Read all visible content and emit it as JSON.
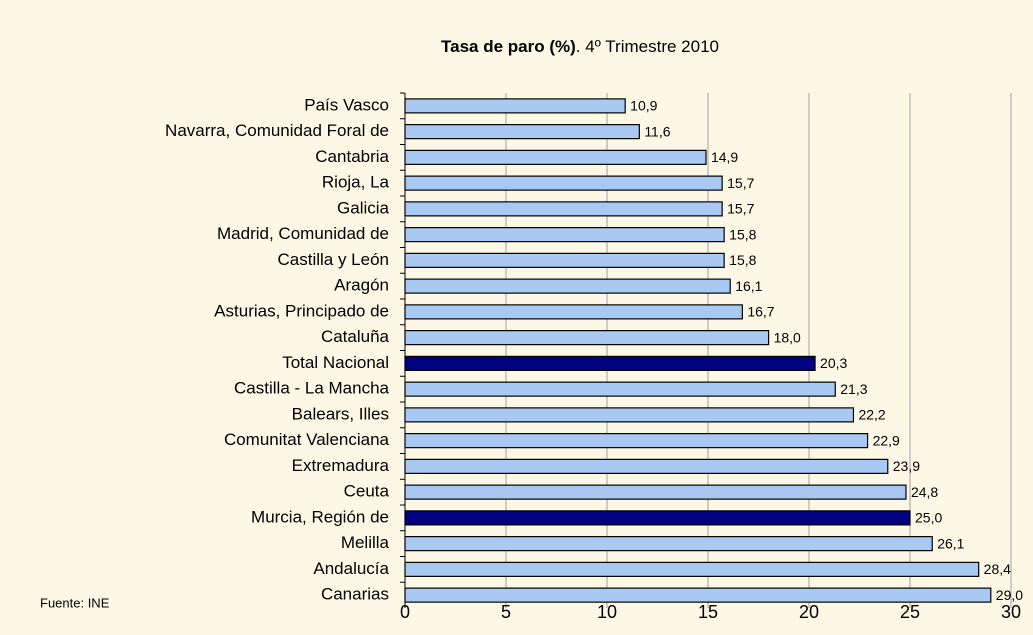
{
  "chart_data": {
    "type": "bar",
    "orientation": "horizontal",
    "title": {
      "bold": "Tasa de paro (%)",
      "rest": ". 4º Trimestre 2010"
    },
    "source": "Fuente: INE",
    "categories": [
      "País Vasco",
      "Navarra, Comunidad Foral de",
      "Cantabria",
      "Rioja, La",
      "Galicia",
      "Madrid, Comunidad de",
      "Castilla y León",
      "Aragón",
      "Asturias, Principado de",
      "Cataluña",
      "Total Nacional",
      "Castilla - La Mancha",
      "Balears, Illes",
      "Comunitat Valenciana",
      "Extremadura",
      "Ceuta",
      "Murcia, Región de",
      "Melilla ",
      "Andalucía",
      "Canarias"
    ],
    "values": [
      10.9,
      11.6,
      14.9,
      15.7,
      15.7,
      15.8,
      15.8,
      16.1,
      16.7,
      18.0,
      20.3,
      21.3,
      22.2,
      22.9,
      23.9,
      24.8,
      25.0,
      26.1,
      28.4,
      29.0
    ],
    "value_labels": [
      "10,9",
      "11,6",
      "14,9",
      "15,7",
      "15,7",
      "15,8",
      "15,8",
      "16,1",
      "16,7",
      "18,0",
      "20,3",
      "21,3",
      "22,2",
      "22,9",
      "23,9",
      "24,8",
      "25,0",
      "26,1",
      "28,4",
      "29,0"
    ],
    "colors": [
      "#a9c9f2",
      "#a9c9f2",
      "#a9c9f2",
      "#a9c9f2",
      "#a9c9f2",
      "#a9c9f2",
      "#a9c9f2",
      "#a9c9f2",
      "#a9c9f2",
      "#a9c9f2",
      "#000080",
      "#a9c9f2",
      "#a9c9f2",
      "#a9c9f2",
      "#a9c9f2",
      "#a9c9f2",
      "#000080",
      "#a9c9f2",
      "#a9c9f2",
      "#a9c9f2"
    ],
    "xlim": [
      0,
      30
    ],
    "xticks": [
      0,
      5,
      10,
      15,
      20,
      25,
      30
    ],
    "grid": true
  }
}
